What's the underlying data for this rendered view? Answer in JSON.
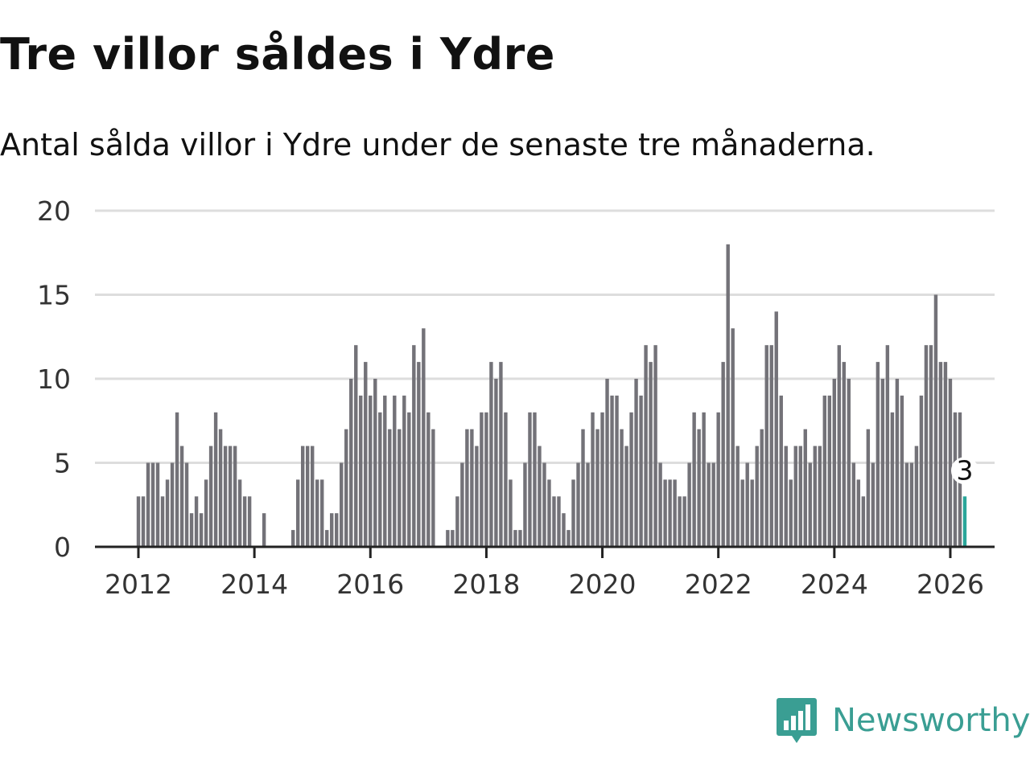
{
  "title": "Tre villor såldes i Ydre",
  "subtitle": "Antal sålda villor i Ydre under de senaste tre månaderna.",
  "brand": {
    "name": "Newsworthy",
    "color": "#3a9e93",
    "icon": "newsworthy-logo-icon"
  },
  "colors": {
    "bar": "#737278",
    "highlight": "#2aa69a",
    "grid": "#dddddd",
    "axis": "#222222"
  },
  "chart_data": {
    "type": "bar",
    "title": "Tre villor såldes i Ydre",
    "subtitle": "Antal sålda villor i Ydre under de senaste tre månaderna.",
    "xlabel": "",
    "ylabel": "",
    "ylim": [
      0,
      20
    ],
    "yticks": [
      0,
      5,
      10,
      15,
      20
    ],
    "xlim": [
      2011.25,
      2026.75
    ],
    "xticks": [
      2012,
      2014,
      2016,
      2018,
      2020,
      2022,
      2024,
      2026
    ],
    "grid": true,
    "start": 2012.0,
    "step": 0.08333,
    "highlight_last": true,
    "last_label": "3",
    "values": [
      3,
      3,
      5,
      5,
      5,
      3,
      4,
      5,
      8,
      6,
      5,
      2,
      3,
      2,
      4,
      6,
      8,
      7,
      6,
      6,
      6,
      4,
      3,
      3,
      0,
      0,
      2,
      0,
      0,
      0,
      0,
      0,
      1,
      4,
      6,
      6,
      6,
      4,
      4,
      1,
      2,
      2,
      5,
      7,
      10,
      12,
      9,
      11,
      9,
      10,
      8,
      9,
      7,
      9,
      7,
      9,
      8,
      12,
      11,
      13,
      8,
      7,
      0,
      0,
      1,
      1,
      3,
      5,
      7,
      7,
      6,
      8,
      8,
      11,
      10,
      11,
      8,
      4,
      1,
      1,
      5,
      8,
      8,
      6,
      5,
      4,
      3,
      3,
      2,
      1,
      4,
      5,
      7,
      5,
      8,
      7,
      8,
      10,
      9,
      9,
      7,
      6,
      8,
      10,
      9,
      12,
      11,
      12,
      5,
      4,
      4,
      4,
      3,
      3,
      5,
      8,
      7,
      8,
      5,
      5,
      8,
      11,
      18,
      13,
      6,
      4,
      5,
      4,
      6,
      7,
      12,
      12,
      14,
      9,
      6,
      4,
      6,
      6,
      7,
      5,
      6,
      6,
      9,
      9,
      10,
      12,
      11,
      10,
      5,
      4,
      3,
      7,
      5,
      11,
      10,
      12,
      8,
      10,
      9,
      5,
      5,
      6,
      9,
      12,
      12,
      15,
      11,
      11,
      10,
      8,
      8,
      3
    ]
  }
}
